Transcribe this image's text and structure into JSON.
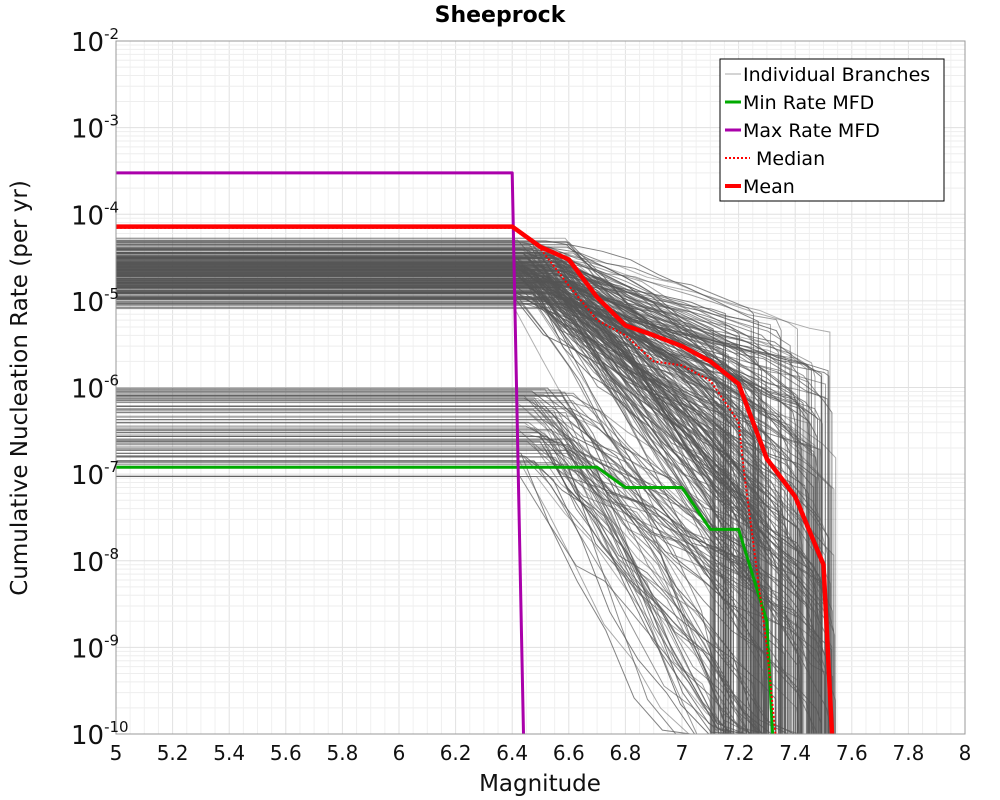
{
  "chart_data": {
    "type": "line",
    "title": "Sheeprock",
    "xlabel": "Magnitude",
    "ylabel": "Cumulative Nucleation Rate (per yr)",
    "xlim": [
      5,
      8
    ],
    "ylim": [
      1e-10,
      0.01
    ],
    "yscale": "log",
    "grid": true,
    "legend_position": "top-right",
    "x_ticks": [
      "5",
      "5.2",
      "5.4",
      "5.6",
      "5.8",
      "6",
      "6.2",
      "6.4",
      "6.6",
      "6.8",
      "7",
      "7.2",
      "7.4",
      "7.6",
      "7.8",
      "8"
    ],
    "y_ticks": [
      {
        "base": "10",
        "exp": "-2",
        "value": 0.01
      },
      {
        "base": "10",
        "exp": "-3",
        "value": 0.001
      },
      {
        "base": "10",
        "exp": "-4",
        "value": 0.0001
      },
      {
        "base": "10",
        "exp": "-5",
        "value": 1e-05
      },
      {
        "base": "10",
        "exp": "-6",
        "value": 1e-06
      },
      {
        "base": "10",
        "exp": "-7",
        "value": 1e-07
      },
      {
        "base": "10",
        "exp": "-8",
        "value": 1e-08
      },
      {
        "base": "10",
        "exp": "-9",
        "value": 1e-09
      },
      {
        "base": "10",
        "exp": "-10",
        "value": 1e-10
      }
    ],
    "series": [
      {
        "name": "Individual Branches",
        "color": "#555555",
        "style": "thin",
        "note_count": 300
      },
      {
        "name": "Min Rate MFD",
        "color": "#00aa00",
        "style": "solid",
        "x": [
          5.0,
          6.41,
          6.5,
          6.6,
          6.7,
          6.8,
          6.9,
          7.0,
          7.1,
          7.2,
          7.3,
          7.32
        ],
        "y": [
          1.2e-07,
          1.2e-07,
          1.2e-07,
          1.2e-07,
          1.2e-07,
          7e-08,
          7e-08,
          7e-08,
          2.3e-08,
          2.3e-08,
          2e-09,
          1e-10
        ]
      },
      {
        "name": "Max Rate MFD",
        "color": "#aa00aa",
        "style": "solid",
        "x": [
          5.0,
          6.4,
          6.44
        ],
        "y": [
          0.0003,
          0.0003,
          1e-10
        ]
      },
      {
        "name": "Median",
        "color": "#ff0000",
        "style": "dotted",
        "x": [
          5.0,
          6.4,
          6.5,
          6.6,
          6.7,
          6.8,
          6.9,
          7.0,
          7.1,
          7.2,
          7.22,
          7.3,
          7.33
        ],
        "y": [
          7e-05,
          7e-05,
          4e-05,
          1.5e-05,
          6e-06,
          4e-06,
          2e-06,
          1.8e-06,
          1.2e-06,
          4e-07,
          1e-07,
          1e-09,
          1e-10
        ]
      },
      {
        "name": "Mean",
        "color": "#ff0000",
        "style": "thick",
        "x": [
          5.0,
          6.4,
          6.5,
          6.6,
          6.7,
          6.8,
          6.9,
          7.0,
          7.1,
          7.2,
          7.3,
          7.4,
          7.5,
          7.53
        ],
        "y": [
          7.2e-05,
          7.2e-05,
          4.2e-05,
          3e-05,
          1.1e-05,
          5.2e-06,
          4e-06,
          3e-06,
          2e-06,
          1.1e-06,
          1.5e-07,
          5.5e-08,
          9e-09,
          1e-10
        ]
      }
    ]
  }
}
